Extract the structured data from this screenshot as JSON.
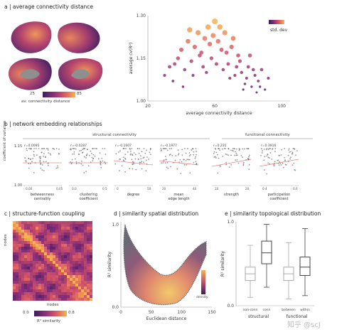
{
  "panels": {
    "a": {
      "label": "a | average connectivity distance",
      "colorbar_min": "25",
      "colorbar_max": "85",
      "colorbar_label": "av. connectivity distance"
    },
    "b": {
      "label": "b | network embedding relationships",
      "group_structural": "structural connectivity",
      "group_functional": "functional connectivity",
      "y_label": "coefficient of variation",
      "y_ticks": [
        "1.15",
        "1.00"
      ]
    },
    "c": {
      "label": "c | structure-function coupling",
      "y_label": "nodes",
      "x_label": "nodes",
      "colorbar_min": "0.0",
      "colorbar_max": "0.8",
      "colorbar_label": "R² similarity"
    },
    "d": {
      "label": "d | similarity spatial distribution",
      "density_label": "density"
    },
    "e": {
      "label": "e | similarity topological distribution"
    }
  },
  "watermark": "知乎 @scJ",
  "chart_data": [
    {
      "id": "a-scatter",
      "type": "scatter",
      "xlabel": "average connectivity distance",
      "ylabel": "average cv(R²)",
      "xlim": [
        20,
        105
      ],
      "ylim": [
        1.0,
        1.3
      ],
      "xticks": [
        "20",
        "60",
        "100"
      ],
      "yticks": [
        "1.00",
        "1.15",
        "1.30"
      ],
      "legend": "std. dev",
      "legend_position": "top-right",
      "colors": [
        "#6b3a78",
        "#c2506a",
        "#f0a04b"
      ],
      "points": [
        [
          30,
          1.09
        ],
        [
          33,
          1.12
        ],
        [
          35,
          1.07
        ],
        [
          38,
          1.15
        ],
        [
          40,
          1.18
        ],
        [
          42,
          1.11
        ],
        [
          44,
          1.21
        ],
        [
          46,
          1.14
        ],
        [
          48,
          1.19
        ],
        [
          50,
          1.24
        ],
        [
          52,
          1.17
        ],
        [
          54,
          1.22
        ],
        [
          56,
          1.26
        ],
        [
          58,
          1.15
        ],
        [
          60,
          1.28
        ],
        [
          62,
          1.21
        ],
        [
          64,
          1.18
        ],
        [
          66,
          1.24
        ],
        [
          68,
          1.13
        ],
        [
          70,
          1.19
        ],
        [
          72,
          1.09
        ],
        [
          74,
          1.16
        ],
        [
          76,
          1.1
        ],
        [
          78,
          1.06
        ],
        [
          80,
          1.12
        ],
        [
          82,
          1.05
        ],
        [
          84,
          1.09
        ],
        [
          86,
          1.07
        ],
        [
          88,
          1.11
        ],
        [
          90,
          1.04
        ],
        [
          92,
          1.08
        ],
        [
          36,
          1.13
        ],
        [
          41,
          1.05
        ],
        [
          47,
          1.09
        ],
        [
          53,
          1.12
        ],
        [
          57,
          1.2
        ],
        [
          61,
          1.13
        ],
        [
          63,
          1.26
        ],
        [
          67,
          1.17
        ],
        [
          71,
          1.22
        ],
        [
          75,
          1.14
        ],
        [
          79,
          1.08
        ],
        [
          83,
          1.11
        ],
        [
          87,
          1.05
        ],
        [
          45,
          1.25
        ],
        [
          51,
          1.16
        ],
        [
          55,
          1.1
        ],
        [
          59,
          1.23
        ],
        [
          65,
          1.11
        ],
        [
          69,
          1.08
        ],
        [
          73,
          1.12
        ],
        [
          77,
          1.04
        ],
        [
          81,
          1.16
        ],
        [
          85,
          1.03
        ]
      ]
    },
    {
      "id": "b-scatters",
      "type": "scatter",
      "xlim": [
        0,
        1
      ],
      "ylim": [
        1.0,
        1.15
      ],
      "subplots": [
        {
          "r": "r=0.0095",
          "xlabel": "betweenness centrality",
          "xticks": [
            "0.00",
            "0.05"
          ]
        },
        {
          "r": "r=-0.0287",
          "xlabel": "clustering coefficient",
          "xticks": [
            "0.0",
            "0.5"
          ]
        },
        {
          "r": "r=-0.1607",
          "xlabel": "degree",
          "xticks": [
            "0",
            "50"
          ]
        },
        {
          "r": "r=-0.1977",
          "xlabel": "mean edge length",
          "xticks": [
            "20",
            "40"
          ]
        },
        {
          "r": "r=0.235",
          "xlabel": "strength",
          "xticks": [
            "10",
            "20"
          ]
        },
        {
          "r": "r=0.3916",
          "xlabel": "participation coefficient",
          "xticks": [
            "0.4",
            "0.6"
          ]
        }
      ]
    },
    {
      "id": "c-heatmap",
      "type": "heatmap",
      "xlabel": "nodes",
      "ylabel": "nodes",
      "colormin": 0.0,
      "colormax": 0.8
    },
    {
      "id": "d-scatter",
      "type": "scatter",
      "xlabel": "Euclidean distance",
      "ylabel": "R² similarity",
      "xlim": [
        0,
        150
      ],
      "ylim": [
        0.0,
        1.0
      ],
      "xticks": [
        "0",
        "50",
        "100",
        "150"
      ],
      "yticks": [
        "0.0",
        "1.0"
      ]
    },
    {
      "id": "e-box",
      "type": "box",
      "ylabel": "R² similarity",
      "ylim": [
        0.0,
        1.0
      ],
      "yticks": [
        "0.0",
        "1.0"
      ],
      "groups": [
        {
          "name": "structural",
          "categories": [
            "non-conn",
            "conn"
          ]
        },
        {
          "name": "functional",
          "categories": [
            "between",
            "within"
          ]
        }
      ],
      "boxes": [
        {
          "q1": 0.3,
          "median": 0.38,
          "q3": 0.46,
          "lo": 0.1,
          "hi": 0.72,
          "style": "light"
        },
        {
          "q1": 0.5,
          "median": 0.63,
          "q3": 0.77,
          "lo": 0.22,
          "hi": 0.97,
          "style": "dark"
        },
        {
          "q1": 0.3,
          "median": 0.38,
          "q3": 0.46,
          "lo": 0.08,
          "hi": 0.75,
          "style": "light"
        },
        {
          "q1": 0.36,
          "median": 0.46,
          "q3": 0.58,
          "lo": 0.12,
          "hi": 0.92,
          "style": "dark"
        }
      ]
    }
  ]
}
